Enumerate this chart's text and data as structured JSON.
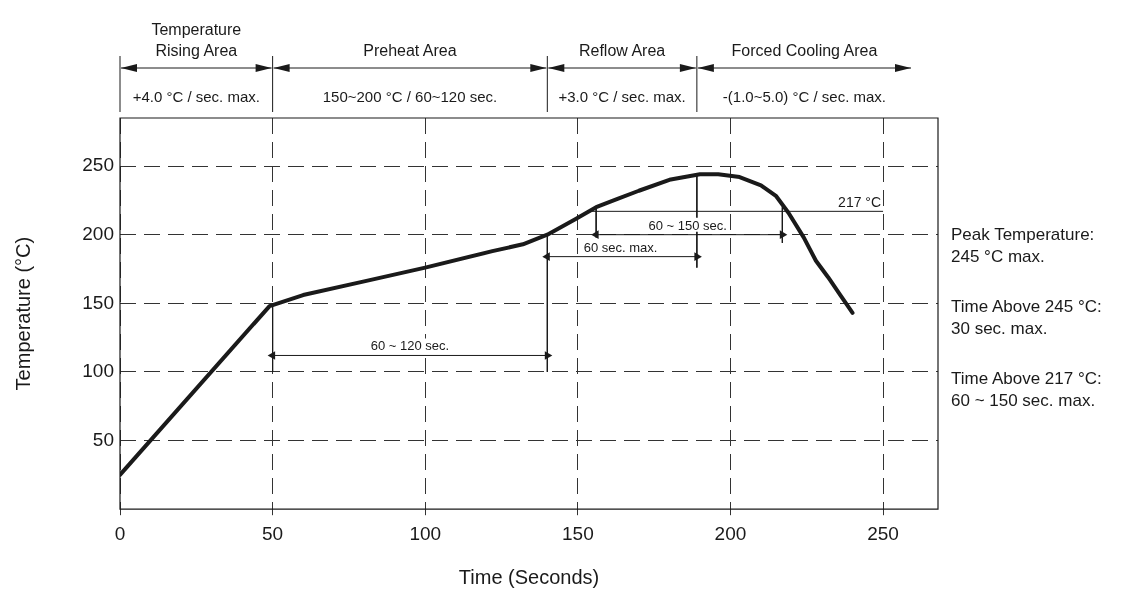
{
  "chart_data": {
    "type": "line",
    "xlabel": "Time (Seconds)",
    "ylabel": "Temperature (°C)",
    "x": [
      0,
      49,
      60,
      80,
      100,
      122,
      132,
      140,
      149,
      156,
      163,
      170,
      180,
      190,
      196,
      203,
      210,
      215,
      219,
      224,
      228,
      232,
      236,
      240
    ],
    "series": [
      {
        "color": "#1a1a1a",
        "values": [
          25,
          148,
          156,
          166,
          176,
          188,
          193,
          200,
          211,
          220,
          226,
          232,
          240,
          244,
          244,
          242,
          236,
          228,
          216,
          198,
          181,
          169,
          156,
          143
        ]
      },
      {
        "type": "line",
        "x": [
          50,
          140
        ],
        "values": [
          112,
          112
        ],
        "color": "#1a1a1a",
        "marker": "triangle"
      },
      {
        "type": "line",
        "x": [
          140,
          189
        ],
        "values": [
          184,
          184
        ],
        "color": "#1a1a1a",
        "marker": "triangle"
      },
      {
        "type": "line",
        "x": [
          156,
          217
        ],
        "values": [
          200,
          200
        ],
        "color": "#1a1a1a",
        "marker": "triangle"
      },
      {
        "type": "line",
        "x": [
          50,
          50
        ],
        "values": [
          148,
          100
        ],
        "color": "#1a1a1a"
      },
      {
        "type": "line",
        "x": [
          140,
          140
        ],
        "values": [
          200,
          100
        ],
        "color": "#1a1a1a"
      },
      {
        "type": "line",
        "x": [
          189,
          189
        ],
        "values": [
          243,
          176
        ],
        "color": "#1a1a1a"
      },
      {
        "type": "line",
        "x": [
          156,
          156
        ],
        "values": [
          220,
          198
        ],
        "color": "#1a1a1a"
      },
      {
        "type": "line",
        "x": [
          217,
          217
        ],
        "values": [
          220,
          194
        ],
        "color": "#1a1a1a"
      }
    ],
    "xlim": [
      0,
      268
    ],
    "xticks": [
      0,
      50,
      100,
      150,
      200,
      250
    ],
    "ylim": [
      0,
      285
    ],
    "yticks": [
      50,
      100,
      150,
      200,
      250
    ],
    "grid": true,
    "legend": false,
    "marker": "none",
    "line_style": "solid",
    "ref_lines": [
      {
        "axis": "y",
        "value": 217,
        "label": "217 °C"
      }
    ],
    "annotations": [
      "Temperature Rising Area",
      "Preheat Area",
      "Reflow Area",
      "Forced Cooling Area",
      "+4.0 °C / sec. max.",
      "150~200 °C / 60~120 sec.",
      "+3.0 °C / sec. max.",
      "-(1.0~5.0) °C / sec. max.",
      {
        "text": "60 ~ 120 sec.",
        "x": 95,
        "y": 112
      },
      {
        "text": "60 sec. max.",
        "x": 164,
        "y": 184
      },
      {
        "text": "60 ~ 150 sec.",
        "x": 186,
        "y": 200
      },
      "Peak Temperature: 245 °C max.",
      "Time Above 245 °C: 30 sec. max.",
      "Time Above 217 °C: 60 ~ 150 sec. max."
    ]
  }
}
